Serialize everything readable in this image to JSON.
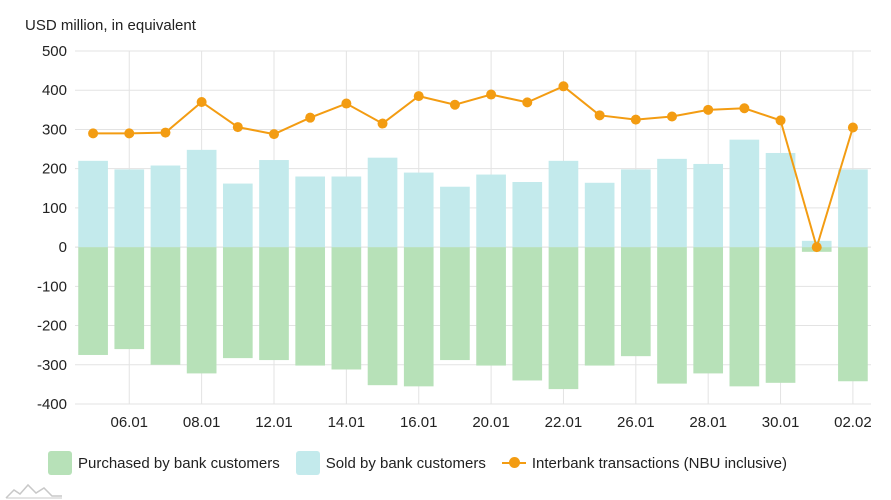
{
  "chart_data": {
    "type": "bar",
    "ylabel": "USD million, in equivalent",
    "ylim": [
      -400,
      500
    ],
    "yticks": [
      500,
      400,
      300,
      200,
      100,
      0,
      -100,
      -200,
      -300,
      -400
    ],
    "x_tick_labels": [
      "06.01",
      "08.01",
      "12.01",
      "14.01",
      "16.01",
      "20.01",
      "22.01",
      "26.01",
      "28.01",
      "30.01",
      "02.02"
    ],
    "x_tick_indices": [
      1,
      3,
      5,
      7,
      9,
      11,
      13,
      15,
      17,
      19,
      21
    ],
    "num_points": 22,
    "series": [
      {
        "name": "Purchased by bank customers",
        "kind": "bar",
        "color": "#b7e1b8",
        "values": [
          -275,
          -260,
          -300,
          -322,
          -283,
          -288,
          -302,
          -312,
          -352,
          -355,
          -288,
          -302,
          -340,
          -362,
          -302,
          -278,
          -348,
          -322,
          -355,
          -346,
          -12,
          -342
        ]
      },
      {
        "name": "Sold by bank customers",
        "kind": "bar",
        "color": "#c3eaec",
        "values": [
          220,
          198,
          208,
          248,
          162,
          222,
          180,
          180,
          228,
          190,
          154,
          185,
          166,
          220,
          164,
          198,
          225,
          212,
          274,
          240,
          16,
          198
        ]
      },
      {
        "name": "Interbank transactions (NBU inclusive)",
        "kind": "line",
        "color": "#f39c12",
        "values": [
          290,
          290,
          292,
          370,
          306,
          288,
          330,
          366,
          315,
          385,
          363,
          389,
          369,
          410,
          336,
          325,
          333,
          350,
          354,
          323,
          0,
          305
        ]
      }
    ],
    "grid": true,
    "legend": "bottom"
  }
}
